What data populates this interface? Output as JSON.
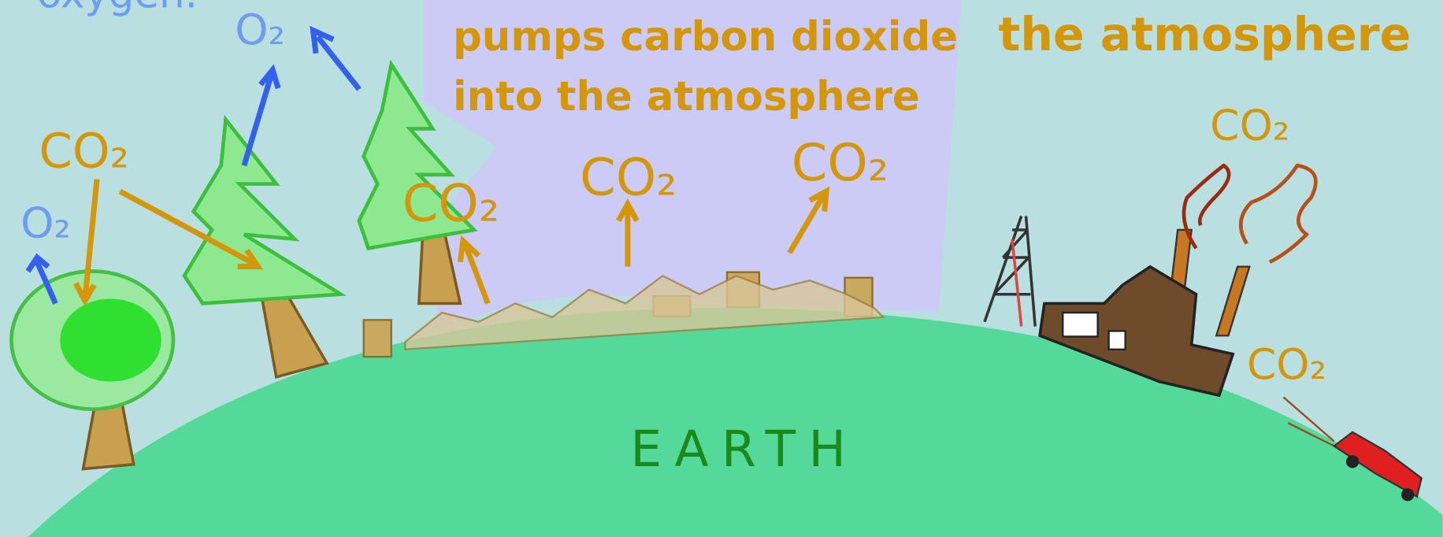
{
  "top_left_text": "oxygen.",
  "caption": [
    "pumps carbon dioxide",
    "into the atmosphere"
  ],
  "top_right_text": "the atmosphere",
  "gas_labels": [
    "O₂",
    "CO₂",
    "O₂",
    "CO₂",
    "CO₂",
    "CO₂",
    "CO₂",
    "CO₂"
  ],
  "planet_label": "EARTH"
}
